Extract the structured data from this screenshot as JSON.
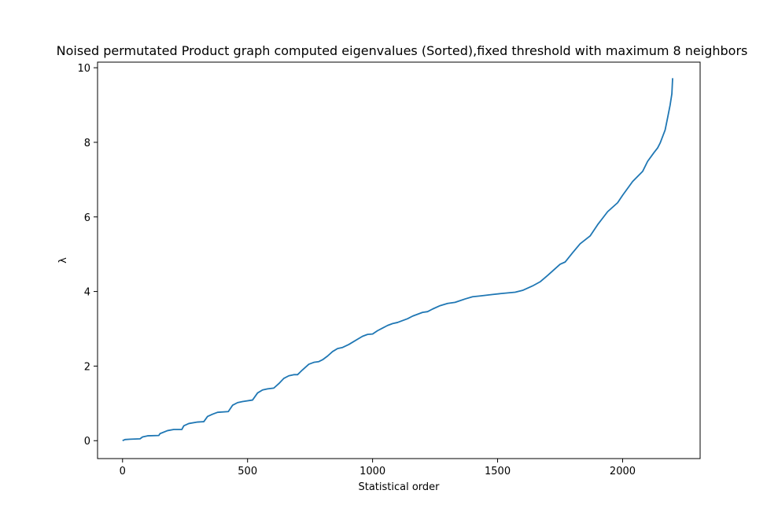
{
  "chart_data": {
    "type": "line",
    "title": "Noised permutated Product graph computed eigenvalues (Sorted),fixed threshold with maximum 8 neighbors",
    "xlabel": "Statistical order",
    "ylabel": "λ",
    "xlim": [
      -100,
      2310
    ],
    "ylim": [
      -0.48,
      10.15
    ],
    "x_ticks": [
      0,
      500,
      1000,
      1500,
      2000
    ],
    "y_ticks": [
      0,
      2,
      4,
      6,
      8,
      10
    ],
    "grid": false,
    "line_color": "#1f77b4",
    "series": [
      {
        "x": [
          0,
          10,
          30,
          70,
          80,
          100,
          145,
          150,
          180,
          205,
          237,
          245,
          265,
          300,
          325,
          340,
          360,
          380,
          423,
          440,
          460,
          480,
          520,
          540,
          560,
          580,
          605,
          625,
          645,
          665,
          685,
          700,
          720,
          745,
          765,
          785,
          800,
          820,
          840,
          860,
          880,
          905,
          920,
          940,
          960,
          980,
          1000,
          1020,
          1040,
          1060,
          1080,
          1100,
          1140,
          1160,
          1180,
          1200,
          1220,
          1240,
          1270,
          1300,
          1330,
          1370,
          1400,
          1430,
          1480,
          1520,
          1570,
          1600,
          1640,
          1670,
          1700,
          1750,
          1770,
          1800,
          1830,
          1870,
          1900,
          1940,
          1980,
          2000,
          2040,
          2080,
          2100,
          2125,
          2140,
          2150,
          2170,
          2180,
          2190,
          2197,
          2200
        ],
        "y": [
          0.0,
          0.03,
          0.04,
          0.05,
          0.1,
          0.13,
          0.14,
          0.19,
          0.27,
          0.3,
          0.3,
          0.4,
          0.46,
          0.5,
          0.51,
          0.65,
          0.71,
          0.76,
          0.78,
          0.95,
          1.02,
          1.05,
          1.09,
          1.28,
          1.36,
          1.39,
          1.41,
          1.53,
          1.67,
          1.74,
          1.77,
          1.77,
          1.9,
          2.05,
          2.1,
          2.12,
          2.17,
          2.27,
          2.39,
          2.47,
          2.5,
          2.58,
          2.64,
          2.72,
          2.8,
          2.85,
          2.86,
          2.95,
          3.02,
          3.09,
          3.14,
          3.17,
          3.27,
          3.34,
          3.39,
          3.44,
          3.46,
          3.53,
          3.62,
          3.68,
          3.71,
          3.8,
          3.86,
          3.88,
          3.92,
          3.95,
          3.98,
          4.03,
          4.15,
          4.26,
          4.43,
          4.73,
          4.79,
          5.04,
          5.28,
          5.49,
          5.79,
          6.14,
          6.38,
          6.58,
          6.95,
          7.22,
          7.49,
          7.72,
          7.85,
          7.98,
          8.33,
          8.66,
          9.0,
          9.3,
          9.72
        ]
      }
    ]
  }
}
